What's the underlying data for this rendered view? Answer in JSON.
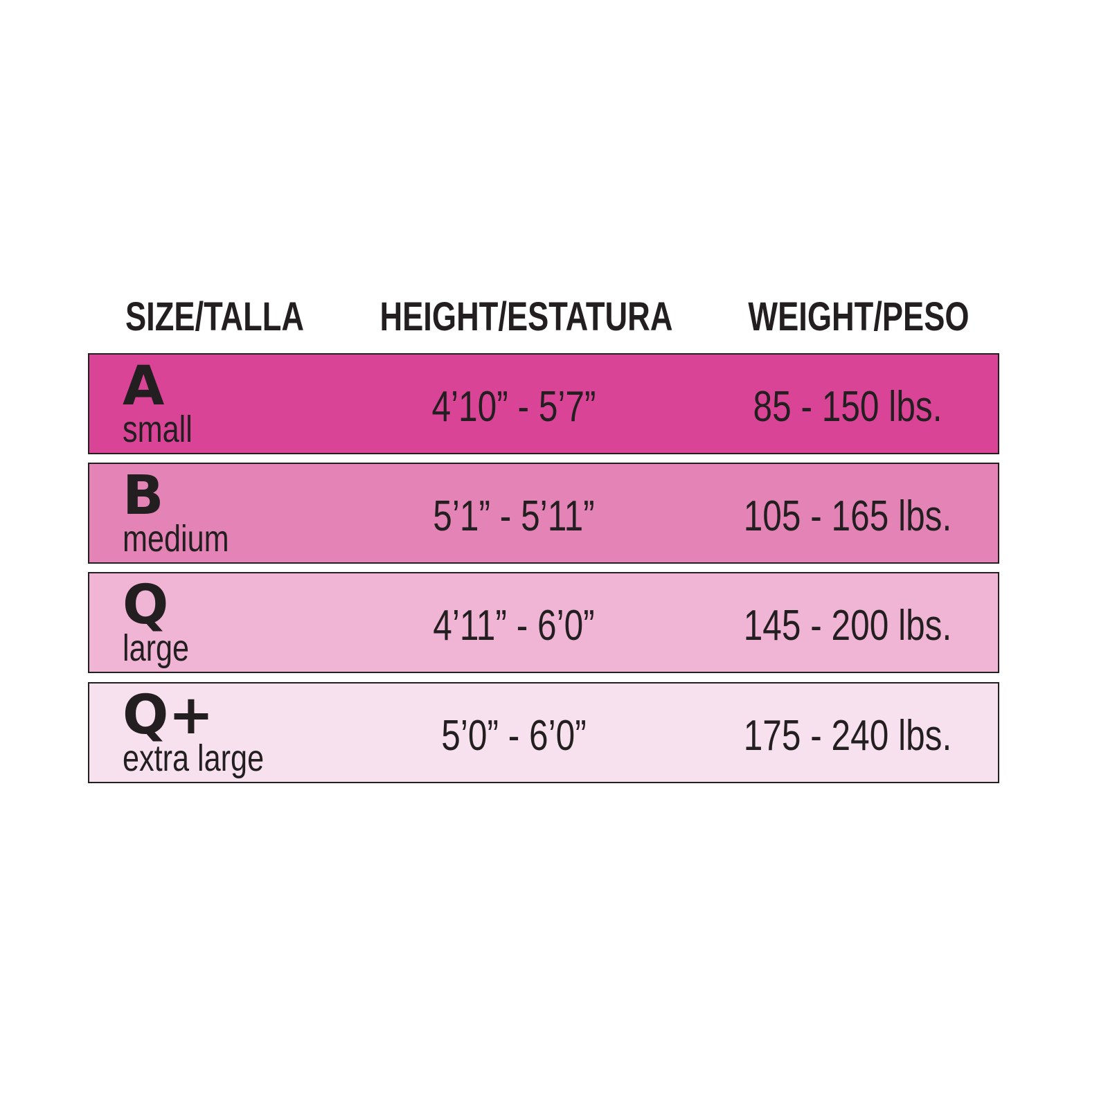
{
  "headers": {
    "size": "SIZE/TALLA",
    "height": "HEIGHT/ESTATURA",
    "weight": "WEIGHT/PESO"
  },
  "rows": [
    {
      "letter": "A",
      "name": "small",
      "height": "4’10” - 5’7”",
      "weight": "85 - 150 lbs.",
      "color": "#da4496"
    },
    {
      "letter": "B",
      "name": "medium",
      "height": "5’1” - 5’11”",
      "weight": "105 - 165 lbs.",
      "color": "#e484b6"
    },
    {
      "letter": "Q",
      "name": "large",
      "height": "4’11” - 6’0”",
      "weight": "145 - 200 lbs.",
      "color": "#f0b4d4"
    },
    {
      "letter": "Q+",
      "name": "extra large",
      "height": "5’0” - 6’0”",
      "weight": "175 - 240 lbs.",
      "color": "#f8e1ee"
    }
  ]
}
